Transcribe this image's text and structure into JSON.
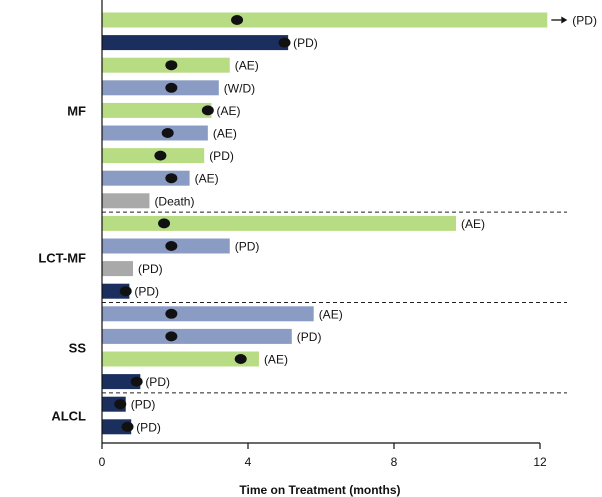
{
  "chart_data": {
    "type": "bar",
    "orientation": "horizontal",
    "xlabel": "Time on Treatment (months)",
    "xlim": [
      0,
      12
    ],
    "xticks": [
      0,
      4,
      8,
      12
    ],
    "groups": [
      "MF",
      "LCT-MF",
      "SS",
      "ALCL"
    ],
    "bars": [
      {
        "group": "MF",
        "value": 12.2,
        "marker": 3.7,
        "label": "(PD)",
        "color": "#b8dc84",
        "ongoing": true
      },
      {
        "group": "MF",
        "value": 5.1,
        "marker": 5.0,
        "label": "(PD)",
        "color": "#1b2f5e"
      },
      {
        "group": "MF",
        "value": 3.5,
        "marker": 1.9,
        "label": "(AE)",
        "color": "#b8dc84"
      },
      {
        "group": "MF",
        "value": 3.2,
        "marker": 1.9,
        "label": "(W/D)",
        "color": "#8b9cc4"
      },
      {
        "group": "MF",
        "value": 3.0,
        "marker": 2.9,
        "label": "(AE)",
        "color": "#b8dc84"
      },
      {
        "group": "MF",
        "value": 2.9,
        "marker": 1.8,
        "label": "(AE)",
        "color": "#8b9cc4"
      },
      {
        "group": "MF",
        "value": 2.8,
        "marker": 1.6,
        "label": "(PD)",
        "color": "#b8dc84"
      },
      {
        "group": "MF",
        "value": 2.4,
        "marker": 1.9,
        "label": "(AE)",
        "color": "#8b9cc4"
      },
      {
        "group": "MF",
        "value": 1.3,
        "marker": null,
        "label": "(Death)",
        "color": "#a9a9a9"
      },
      {
        "group": "LCT-MF",
        "value": 9.7,
        "marker": 1.7,
        "label": "(AE)",
        "color": "#b8dc84"
      },
      {
        "group": "LCT-MF",
        "value": 3.5,
        "marker": 1.9,
        "label": "(PD)",
        "color": "#8b9cc4"
      },
      {
        "group": "LCT-MF",
        "value": 0.85,
        "marker": null,
        "label": "(PD)",
        "color": "#a9a9a9"
      },
      {
        "group": "LCT-MF",
        "value": 0.75,
        "marker": 0.65,
        "label": "(PD)",
        "color": "#1b2f5e"
      },
      {
        "group": "SS",
        "value": 5.8,
        "marker": 1.9,
        "label": "(AE)",
        "color": "#8b9cc4"
      },
      {
        "group": "SS",
        "value": 5.2,
        "marker": 1.9,
        "label": "(PD)",
        "color": "#8b9cc4"
      },
      {
        "group": "SS",
        "value": 4.3,
        "marker": 3.8,
        "label": "(AE)",
        "color": "#b8dc84"
      },
      {
        "group": "SS",
        "value": 1.05,
        "marker": 0.95,
        "label": "(PD)",
        "color": "#1b2f5e"
      },
      {
        "group": "ALCL",
        "value": 0.65,
        "marker": 0.5,
        "label": "(PD)",
        "color": "#1b2f5e"
      },
      {
        "group": "ALCL",
        "value": 0.8,
        "marker": 0.7,
        "label": "(PD)",
        "color": "#1b2f5e"
      }
    ],
    "group_dividers": true,
    "grid": false,
    "legend": "none"
  }
}
